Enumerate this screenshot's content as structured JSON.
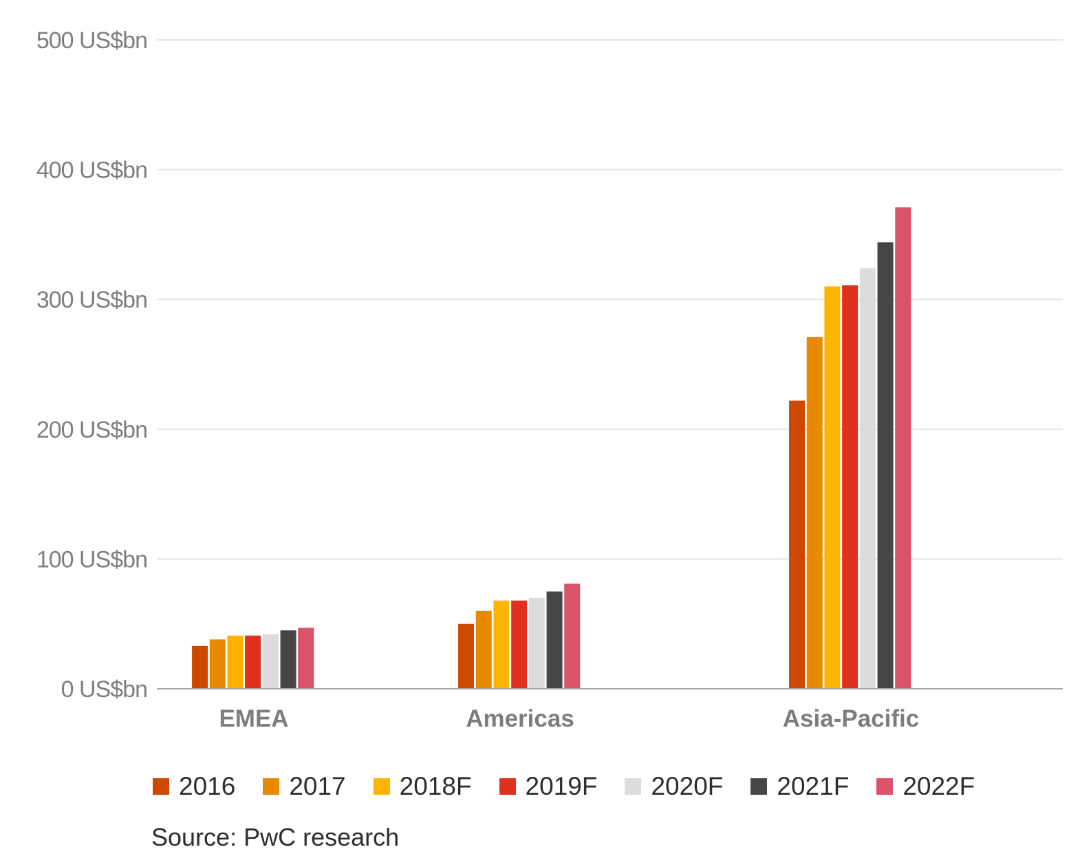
{
  "chart_data": {
    "type": "bar",
    "categories": [
      "EMEA",
      "Americas",
      "Asia-Pacific"
    ],
    "series": [
      {
        "name": "2016",
        "color": "#cc4a00",
        "values": [
          33,
          50,
          222
        ]
      },
      {
        "name": "2017",
        "color": "#e88a00",
        "values": [
          38,
          60,
          271
        ]
      },
      {
        "name": "2018F",
        "color": "#ffb400",
        "values": [
          41,
          68,
          310
        ]
      },
      {
        "name": "2019F",
        "color": "#e0301e",
        "values": [
          41,
          68,
          311
        ]
      },
      {
        "name": "2020F",
        "color": "#dcdcdc",
        "values": [
          42,
          70,
          324
        ]
      },
      {
        "name": "2021F",
        "color": "#464646",
        "values": [
          45,
          75,
          344
        ]
      },
      {
        "name": "2022F",
        "color": "#db536a",
        "values": [
          47,
          81,
          371
        ]
      }
    ],
    "ylim": [
      0,
      500
    ],
    "y_ticks": [
      "0 US$bn",
      "100 US$bn",
      "200 US$bn",
      "300 US$bn",
      "400 US$bn",
      "500 US$bn"
    ],
    "grid": true,
    "legend_position": "bottom"
  },
  "source": "Source: PwC research"
}
